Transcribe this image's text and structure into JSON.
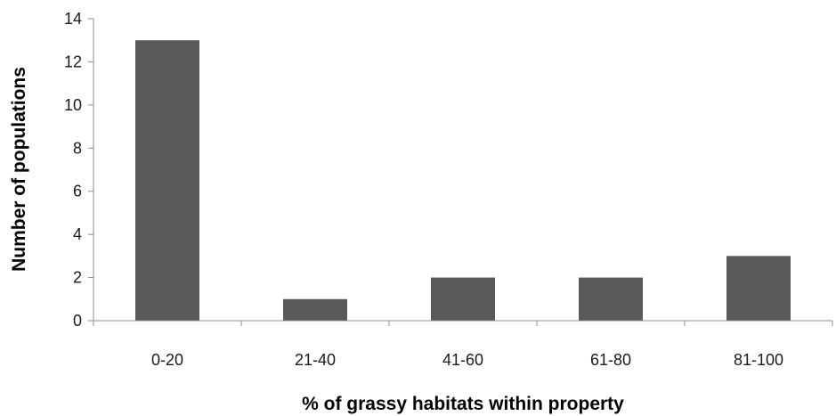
{
  "chart_data": {
    "type": "bar",
    "title": "",
    "xlabel": "% of grassy habitats within property",
    "ylabel": "Number  of populations",
    "categories": [
      "0-20",
      "21-40",
      "41-60",
      "61-80",
      "81-100"
    ],
    "values": [
      13,
      1,
      2,
      2,
      3
    ],
    "ylim": [
      0,
      14
    ],
    "yticks": [
      0,
      2,
      4,
      6,
      8,
      10,
      12,
      14
    ],
    "grid": false,
    "legend": "none",
    "colors": {
      "bar": "#595959",
      "axis": "#8c8c8c",
      "text": "#1a1a1a"
    }
  }
}
